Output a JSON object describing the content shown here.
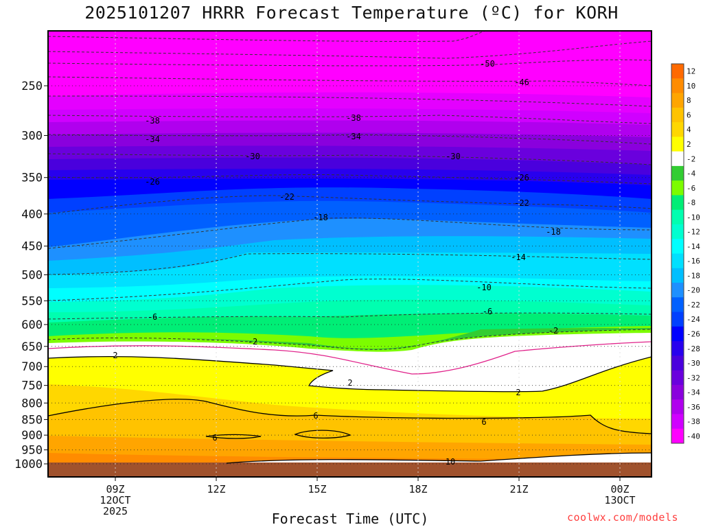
{
  "chart_data": {
    "type": "heatmap",
    "title": "2025101207 HRRR Forecast Temperature (ºC) for KORH",
    "xlabel": "Forecast Time (UTC)",
    "ylabel": "",
    "y_axis_scale": "log",
    "y_range": [
      1000,
      200
    ],
    "y_ticks": [
      250,
      300,
      350,
      400,
      450,
      500,
      550,
      600,
      650,
      700,
      750,
      800,
      850,
      900,
      950,
      1000
    ],
    "x_ticks": [
      {
        "l1": "09Z",
        "l2": "12OCT",
        "l3": "2025"
      },
      {
        "l1": "12Z",
        "l2": "",
        "l3": ""
      },
      {
        "l1": "15Z",
        "l2": "",
        "l3": ""
      },
      {
        "l1": "18Z",
        "l2": "",
        "l3": ""
      },
      {
        "l1": "21Z",
        "l2": "",
        "l3": ""
      },
      {
        "l1": "00Z",
        "l2": "13OCT",
        "l3": ""
      }
    ],
    "grid": true,
    "colorbar": {
      "labels": [
        "12",
        "10",
        "8",
        "6",
        "4",
        "2",
        "-2",
        "-4",
        "-6",
        "-8",
        "-10",
        "-12",
        "-14",
        "-16",
        "-18",
        "-20",
        "-22",
        "-24",
        "-26",
        "-28",
        "-30",
        "-32",
        "-34",
        "-36",
        "-38",
        "-40"
      ],
      "colors": [
        "#ff6a00",
        "#ff8c00",
        "#ffa500",
        "#ffc300",
        "#ffd700",
        "#ffff00",
        "#ffffff",
        "#32cd32",
        "#7cfc00",
        "#00ee76",
        "#00ffb0",
        "#00ffd0",
        "#00ffff",
        "#00e0ff",
        "#00bfff",
        "#1e90ff",
        "#0060ff",
        "#0040ff",
        "#0000ff",
        "#2800ee",
        "#4a00dd",
        "#6a00dd",
        "#8a00dd",
        "#b000ee",
        "#d000ff",
        "#ff00ff"
      ]
    },
    "contour_labels": [
      "-50",
      "-46",
      "-38",
      "-38",
      "-34",
      "-34",
      "-30",
      "-30",
      "-26",
      "-26",
      "-22",
      "-22",
      "-18",
      "-18",
      "-14",
      "-10",
      "-6",
      "-6",
      "-2",
      "-2",
      "2",
      "2",
      "2",
      "6",
      "6",
      "6",
      "10"
    ]
  },
  "credit": "coolwx.com/models"
}
